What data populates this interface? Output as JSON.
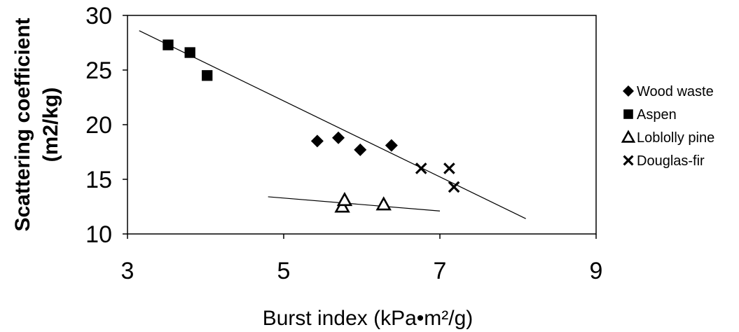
{
  "chart_data": {
    "type": "scatter",
    "title": "",
    "xlabel": "Burst index (kPa•m²/g)",
    "ylabel_line1": "Scattering coefficient",
    "ylabel_line2": "(m2/kg)",
    "xlim": [
      3,
      9
    ],
    "ylim": [
      10,
      30
    ],
    "xticks": [
      "3",
      "5",
      "7",
      "9"
    ],
    "xtick_values": [
      3,
      5,
      7,
      9
    ],
    "yticks": [
      "10",
      "15",
      "20",
      "25",
      "30"
    ],
    "ytick_values": [
      10,
      15,
      20,
      25,
      30
    ],
    "grid": false,
    "legend_position": "right",
    "series": [
      {
        "name": "Wood waste",
        "marker": "diamond",
        "points": [
          [
            5.43,
            18.5
          ],
          [
            5.7,
            18.8
          ],
          [
            5.98,
            17.7
          ],
          [
            6.38,
            18.1
          ]
        ]
      },
      {
        "name": "Aspen",
        "marker": "square",
        "points": [
          [
            3.52,
            27.3
          ],
          [
            3.8,
            26.6
          ],
          [
            4.02,
            24.5
          ]
        ]
      },
      {
        "name": "Loblolly pine",
        "marker": "triangle-open",
        "points": [
          [
            5.75,
            12.5
          ],
          [
            5.78,
            13.1
          ],
          [
            6.28,
            12.7
          ]
        ]
      },
      {
        "name": "Douglas-fir",
        "marker": "x",
        "points": [
          [
            6.76,
            16.0
          ],
          [
            7.12,
            16.0
          ],
          [
            7.18,
            14.3
          ]
        ]
      }
    ],
    "trendlines": [
      {
        "from": [
          3.15,
          28.6
        ],
        "to": [
          8.1,
          11.4
        ]
      },
      {
        "from": [
          4.8,
          13.4
        ],
        "to": [
          7.0,
          12.1
        ]
      }
    ]
  }
}
